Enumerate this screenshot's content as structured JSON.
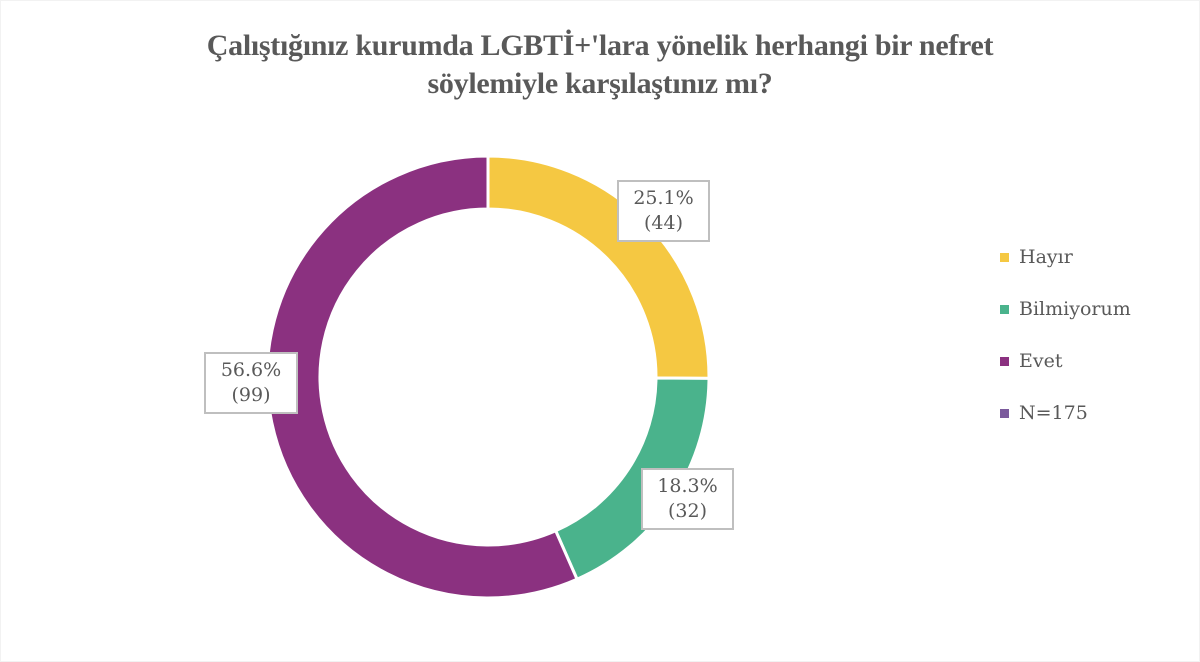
{
  "title": {
    "line1": "Çalıştığınız kurumda LGBTİ+'lara yönelik herhangi bir nefret",
    "line2": "söylemiyle karşılaştınız mı?"
  },
  "labels": {
    "hayir": {
      "pct": "25.1%",
      "count": "(44)"
    },
    "bilmiyorum": {
      "pct": "18.3%",
      "count": "(32)"
    },
    "evet": {
      "pct": "56.6%",
      "count": "(99)"
    }
  },
  "legend": [
    {
      "label": "Hayır",
      "color": "#F5C842"
    },
    {
      "label": "Bilmiyorum",
      "color": "#4AB38C"
    },
    {
      "label": "Evet",
      "color": "#8B3180"
    },
    {
      "label": "N=175",
      "color": "#7B5A9C"
    }
  ],
  "chart_data": {
    "type": "pie",
    "subtype": "donut",
    "title": "Çalıştığınız kurumda LGBTİ+'lara yönelik herhangi bir nefret söylemiyle karşılaştınız mı?",
    "categories": [
      "Hayır",
      "Bilmiyorum",
      "Evet"
    ],
    "values": [
      25.1,
      18.3,
      56.6
    ],
    "counts": [
      44,
      32,
      99
    ],
    "colors": [
      "#F5C842",
      "#4AB38C",
      "#8B3180"
    ],
    "total_n": 175,
    "legend_entries": [
      "Hayır",
      "Bilmiyorum",
      "Evet",
      "N=175"
    ],
    "legend_position": "right",
    "start_angle": "12 o'clock, clockwise"
  }
}
